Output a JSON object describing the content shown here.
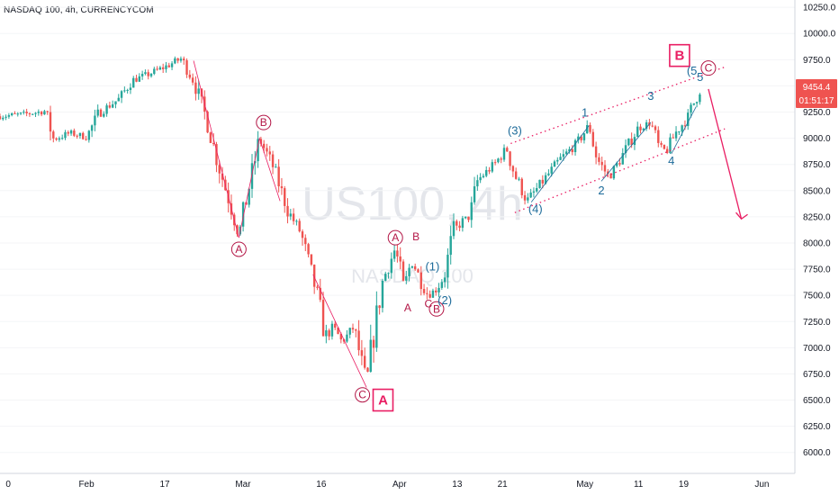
{
  "header": {
    "title": "NASDAQ 100, 4h, CURRENCYCOM"
  },
  "watermark": {
    "symbol": "US100, 4h",
    "subtitle": "NASDAQ 100"
  },
  "price_tag": {
    "price": "9454.4",
    "countdown": "01:51:17"
  },
  "colors": {
    "up": "#26a69a",
    "down": "#ef5350",
    "annotation_red": "#e91e63",
    "wave_blue": "#1d6b9a",
    "price_tag": "#ef5350"
  },
  "chart_data": {
    "type": "candlestick",
    "title": "NASDAQ 100, 4h, CURRENCYCOM",
    "y_axis": {
      "side": "right",
      "range": [
        5800,
        10320
      ],
      "ticks": [
        "10250.0",
        "10000.0",
        "9750.0",
        "9500.0",
        "9250.0",
        "9000.0",
        "8750.0",
        "8500.0",
        "8250.0",
        "8000.0",
        "7750.0",
        "7500.0",
        "7250.0",
        "7000.0",
        "6750.0",
        "6500.0",
        "6250.0",
        "6000.0"
      ]
    },
    "x_axis": {
      "labels": [
        {
          "text": "0",
          "day": 0
        },
        {
          "text": "Feb",
          "day": 19
        },
        {
          "text": "17",
          "day": 38
        },
        {
          "text": "Mar",
          "day": 57
        },
        {
          "text": "16",
          "day": 76
        },
        {
          "text": "Apr",
          "day": 95
        },
        {
          "text": "13",
          "day": 109
        },
        {
          "text": "21",
          "day": 120
        },
        {
          "text": "May",
          "day": 140
        },
        {
          "text": "11",
          "day": 153
        },
        {
          "text": "19",
          "day": 164
        },
        {
          "text": "Jun",
          "day": 183
        }
      ],
      "range": [
        -2,
        191
      ]
    },
    "price_path": [
      [
        -2,
        9210
      ],
      [
        4,
        9230
      ],
      [
        9,
        9260
      ],
      [
        11,
        8990
      ],
      [
        15,
        9050
      ],
      [
        19,
        9010
      ],
      [
        22,
        9240
      ],
      [
        27,
        9380
      ],
      [
        30,
        9550
      ],
      [
        34,
        9610
      ],
      [
        38,
        9680
      ],
      [
        42,
        9760
      ],
      [
        45,
        9550
      ],
      [
        48,
        9200
      ],
      [
        51,
        8750
      ],
      [
        56,
        8090
      ],
      [
        58,
        8450
      ],
      [
        61,
        8990
      ],
      [
        64,
        8760
      ],
      [
        68,
        8300
      ],
      [
        71,
        8100
      ],
      [
        75,
        7500
      ],
      [
        77,
        7100
      ],
      [
        79,
        7200
      ],
      [
        81,
        7050
      ],
      [
        84,
        7200
      ],
      [
        86,
        6800
      ],
      [
        87,
        6680
      ],
      [
        89,
        7200
      ],
      [
        91,
        7650
      ],
      [
        94,
        7950
      ],
      [
        96,
        7550
      ],
      [
        98,
        7850
      ],
      [
        100,
        7650
      ],
      [
        102,
        7500
      ],
      [
        104,
        7560
      ],
      [
        106,
        7700
      ],
      [
        108,
        8100
      ],
      [
        110,
        8200
      ],
      [
        112,
        8250
      ],
      [
        114,
        8600
      ],
      [
        118,
        8750
      ],
      [
        121,
        8900
      ],
      [
        123,
        8650
      ],
      [
        126,
        8400
      ],
      [
        130,
        8600
      ],
      [
        134,
        8800
      ],
      [
        138,
        8950
      ],
      [
        141,
        9120
      ],
      [
        143,
        8800
      ],
      [
        146,
        8620
      ],
      [
        150,
        8900
      ],
      [
        153,
        9100
      ],
      [
        156,
        9150
      ],
      [
        158,
        8900
      ],
      [
        160,
        8880
      ],
      [
        162,
        9050
      ],
      [
        165,
        9200
      ],
      [
        168,
        9480
      ]
    ],
    "annotations": {
      "red_circled": [
        {
          "text": "A",
          "day": 56,
          "price": 7940
        },
        {
          "text": "B",
          "day": 62,
          "price": 9150
        },
        {
          "text": "C",
          "day": 86,
          "price": 6550
        },
        {
          "text": "A",
          "day": 94,
          "price": 8050
        },
        {
          "text": "B",
          "day": 104,
          "price": 7370
        },
        {
          "text": "C",
          "day": 170,
          "price": 9670
        }
      ],
      "red_plain": [
        {
          "text": "B",
          "day": 99,
          "price": 8060
        },
        {
          "text": "A",
          "day": 97,
          "price": 7380
        },
        {
          "text": "C",
          "day": 102,
          "price": 7420
        }
      ],
      "boxed": [
        {
          "text": "A",
          "day": 91,
          "price": 6500
        },
        {
          "text": "B",
          "day": 163,
          "price": 9790
        }
      ],
      "blue": [
        {
          "text": "(1)",
          "day": 103,
          "price": 7770
        },
        {
          "text": "(2)",
          "day": 106,
          "price": 7450
        },
        {
          "text": "(3)",
          "day": 123,
          "price": 9070
        },
        {
          "text": "(4)",
          "day": 128,
          "price": 8320
        },
        {
          "text": "1",
          "day": 140,
          "price": 9240
        },
        {
          "text": "2",
          "day": 144,
          "price": 8500
        },
        {
          "text": "3",
          "day": 156,
          "price": 9400
        },
        {
          "text": "4",
          "day": 161,
          "price": 8780
        },
        {
          "text": "(5",
          "day": 166,
          "price": 9640
        },
        {
          "text": "5",
          "day": 168,
          "price": 9580
        }
      ]
    },
    "channel_lines": [
      {
        "from": [
          123,
          8290
        ],
        "to": [
          174,
          9090
        ]
      },
      {
        "from": [
          122,
          8950
        ],
        "to": [
          174,
          9680
        ]
      }
    ],
    "wave_lines": [
      [
        [
          45,
          9740
        ],
        [
          56,
          8050
        ],
        [
          61,
          9000
        ],
        [
          66,
          8400
        ]
      ],
      [
        [
          74,
          7700
        ],
        [
          87,
          6620
        ]
      ],
      [
        [
          127,
          8390
        ],
        [
          141,
          9120
        ]
      ],
      [
        [
          144,
          8590
        ],
        [
          156,
          9150
        ]
      ],
      [
        [
          161,
          8850
        ],
        [
          167,
          9300
        ]
      ]
    ],
    "forecast_arrow": {
      "from": [
        170,
        9470
      ],
      "to": [
        178,
        8230
      ]
    }
  }
}
